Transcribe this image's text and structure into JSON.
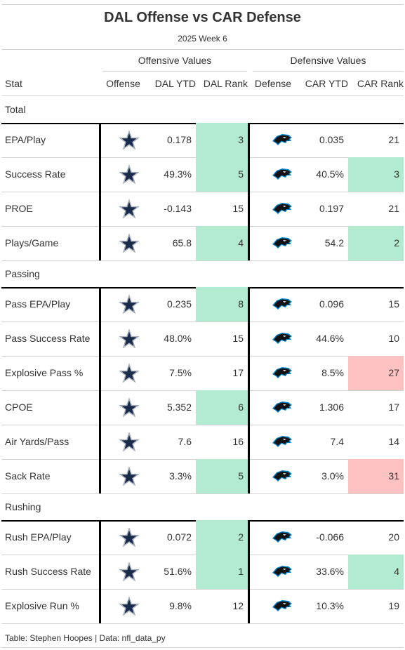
{
  "title": "DAL Offense vs CAR Defense",
  "subtitle": "2025 Week 6",
  "spanners": {
    "offense": "Offensive Values",
    "defense": "Defensive Values"
  },
  "columns": {
    "stat": "Stat",
    "offense": "Offense",
    "dal_ytd": "DAL YTD",
    "dal_rank": "DAL Rank",
    "defense": "Defense",
    "car_ytd": "CAR YTD",
    "car_rank": "CAR Rank"
  },
  "icons": {
    "offense": "dallas-cowboys-star-logo-icon",
    "defense": "carolina-panthers-logo-icon"
  },
  "colors": {
    "good": "#b2ead2",
    "bad": "#ffc2c2",
    "rule": "#d3d3d3",
    "divider": "#000000",
    "star": "#1b2b4b",
    "panther_blue": "#0085ca"
  },
  "footer": "Table: Stephen Hoopes | Data: nfl_data_py",
  "chart_data": {
    "type": "table",
    "groups": [
      {
        "name": "Total",
        "rows": [
          {
            "stat": "EPA/Play",
            "dal_ytd": "0.178",
            "dal_rank": 3,
            "car_ytd": "0.035",
            "car_rank": 21
          },
          {
            "stat": "Success Rate",
            "dal_ytd": "49.3%",
            "dal_rank": 5,
            "car_ytd": "40.5%",
            "car_rank": 3
          },
          {
            "stat": "PROE",
            "dal_ytd": "-0.143",
            "dal_rank": 15,
            "car_ytd": "0.197",
            "car_rank": 21
          },
          {
            "stat": "Plays/Game",
            "dal_ytd": "65.8",
            "dal_rank": 4,
            "car_ytd": "54.2",
            "car_rank": 2
          }
        ]
      },
      {
        "name": "Passing",
        "rows": [
          {
            "stat": "Pass EPA/Play",
            "dal_ytd": "0.235",
            "dal_rank": 8,
            "car_ytd": "0.096",
            "car_rank": 15
          },
          {
            "stat": "Pass Success Rate",
            "dal_ytd": "48.0%",
            "dal_rank": 15,
            "car_ytd": "44.6%",
            "car_rank": 10
          },
          {
            "stat": "Explosive Pass %",
            "dal_ytd": "7.5%",
            "dal_rank": 17,
            "car_ytd": "8.5%",
            "car_rank": 27
          },
          {
            "stat": "CPOE",
            "dal_ytd": "5.352",
            "dal_rank": 6,
            "car_ytd": "1.306",
            "car_rank": 17
          },
          {
            "stat": "Air Yards/Pass",
            "dal_ytd": "7.6",
            "dal_rank": 16,
            "car_ytd": "7.4",
            "car_rank": 14
          },
          {
            "stat": "Sack Rate",
            "dal_ytd": "3.3%",
            "dal_rank": 5,
            "car_ytd": "3.0%",
            "car_rank": 31
          }
        ]
      },
      {
        "name": "Rushing",
        "rows": [
          {
            "stat": "Rush EPA/Play",
            "dal_ytd": "0.072",
            "dal_rank": 2,
            "car_ytd": "-0.066",
            "car_rank": 20
          },
          {
            "stat": "Rush Success Rate",
            "dal_ytd": "51.6%",
            "dal_rank": 1,
            "car_ytd": "33.6%",
            "car_rank": 4
          },
          {
            "stat": "Explosive Run %",
            "dal_ytd": "9.8%",
            "dal_rank": 12,
            "car_ytd": "10.3%",
            "car_rank": 19
          }
        ]
      }
    ]
  }
}
